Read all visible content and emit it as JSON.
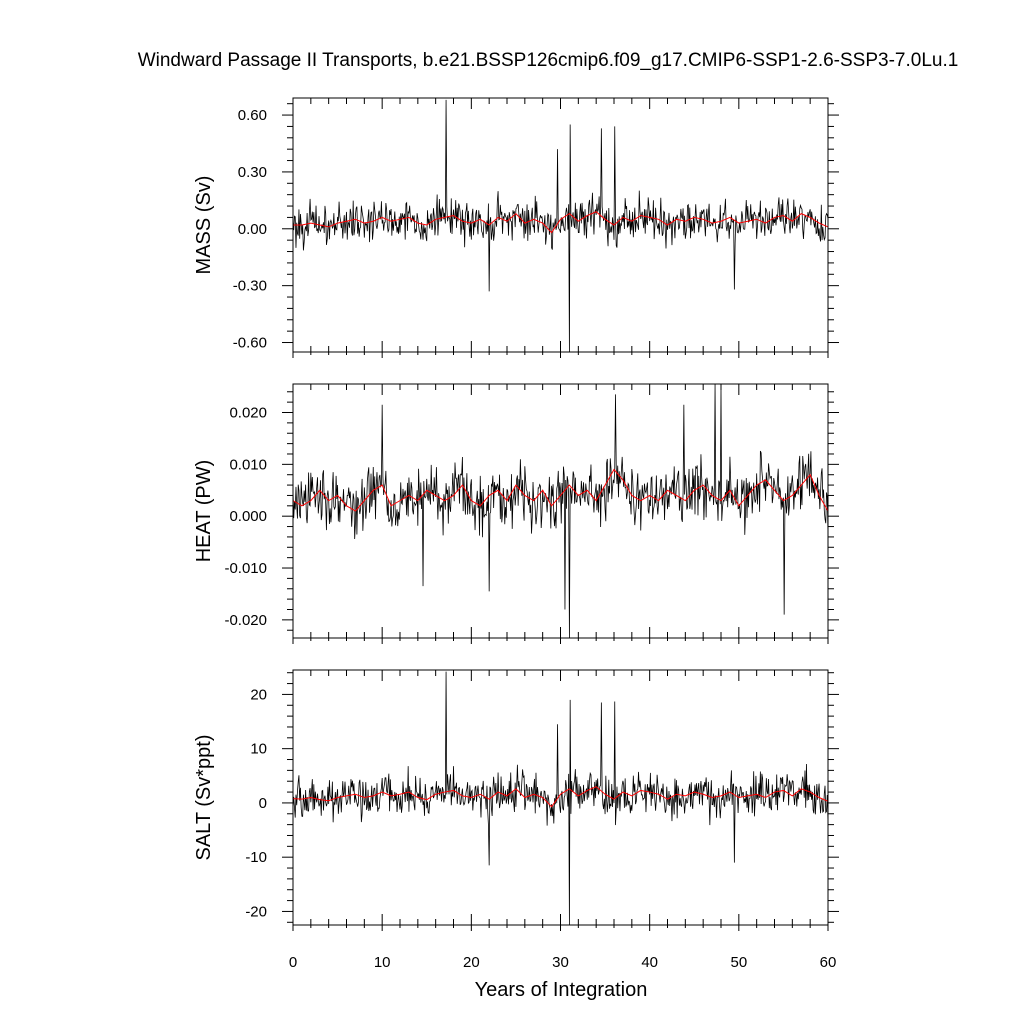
{
  "title": "Windward Passage II Transports, b.e21.BSSP126cmip6.f09_g17.CMIP6-SSP1-2.6-SSP3-7.0Lu.1",
  "xlabel": "Years of Integration",
  "colors": {
    "raw": "#000000",
    "smooth": "#ff0000",
    "axis": "#000000"
  },
  "chart_data": [
    {
      "type": "line",
      "ylabel": "MASS (Sv)",
      "xlim": [
        0,
        60
      ],
      "ylim": [
        -0.65,
        0.69
      ],
      "xticks": [
        0,
        10,
        20,
        30,
        40,
        50,
        60
      ],
      "xtick_labels": [
        "0",
        "10",
        "20",
        "30",
        "40",
        "50",
        "60"
      ],
      "yticks": [
        -0.6,
        -0.3,
        0.0,
        0.3,
        0.6
      ],
      "ytick_labels": [
        "-0.60",
        "-0.30",
        "0.00",
        "0.30",
        "0.60"
      ],
      "yminor_step": 0.06,
      "noise_amp": 0.085,
      "series": [
        {
          "role": "monthly",
          "spikes": [
            [
              17.2,
              0.68
            ],
            [
              31.0,
              -0.65
            ],
            [
              31.1,
              0.55
            ],
            [
              34.6,
              0.53
            ],
            [
              36.1,
              0.54
            ],
            [
              22.0,
              -0.33
            ],
            [
              49.5,
              -0.32
            ],
            [
              29.7,
              0.42
            ]
          ]
        },
        {
          "role": "annual-smoothed",
          "values": [
            0.02,
            0.02,
            0.03,
            0.02,
            0.01,
            0.03,
            0.04,
            0.05,
            0.03,
            0.04,
            0.06,
            0.04,
            0.05,
            0.06,
            0.03,
            0.02,
            0.05,
            0.06,
            0.07,
            0.04,
            0.03,
            0.05,
            0.02,
            0.06,
            0.04,
            0.08,
            0.03,
            0.05,
            0.03,
            -0.02,
            0.05,
            0.08,
            0.04,
            0.07,
            0.09,
            0.05,
            0.02,
            0.06,
            0.04,
            0.07,
            0.06,
            0.05,
            0.02,
            0.05,
            0.04,
            0.06,
            0.05,
            0.03,
            0.04,
            0.06,
            0.03,
            0.04,
            0.05,
            0.03,
            0.06,
            0.07,
            0.04,
            0.08,
            0.06,
            0.03,
            0.01
          ]
        }
      ]
    },
    {
      "type": "line",
      "ylabel": "HEAT (PW)",
      "xlim": [
        0,
        60
      ],
      "ylim": [
        -0.0235,
        0.0255
      ],
      "xticks": [
        0,
        10,
        20,
        30,
        40,
        50,
        60
      ],
      "xtick_labels": [
        "0",
        "10",
        "20",
        "30",
        "40",
        "50",
        "60"
      ],
      "yticks": [
        -0.02,
        -0.01,
        0.0,
        0.01,
        0.02
      ],
      "ytick_labels": [
        "-0.020",
        "-0.010",
        "0.000",
        "0.010",
        "0.020"
      ],
      "yminor_step": 0.002,
      "noise_amp": 0.0045,
      "series": [
        {
          "role": "monthly",
          "spikes": [
            [
              31.0,
              -0.0235
            ],
            [
              47.3,
              0.0255
            ],
            [
              48.0,
              0.025
            ],
            [
              55.1,
              -0.019
            ],
            [
              36.2,
              0.0235
            ],
            [
              30.5,
              -0.018
            ],
            [
              14.6,
              -0.0135
            ],
            [
              22.0,
              -0.0145
            ],
            [
              10.0,
              0.0215
            ],
            [
              43.8,
              0.0215
            ]
          ]
        },
        {
          "role": "annual-smoothed",
          "values": [
            0.003,
            0.002,
            0.003,
            0.005,
            0.003,
            0.004,
            0.002,
            0.001,
            0.003,
            0.005,
            0.006,
            0.002,
            0.003,
            0.004,
            0.003,
            0.005,
            0.004,
            0.003,
            0.004,
            0.006,
            0.003,
            0.002,
            0.004,
            0.005,
            0.003,
            0.006,
            0.004,
            0.003,
            0.005,
            0.002,
            0.004,
            0.006,
            0.004,
            0.005,
            0.003,
            0.006,
            0.009,
            0.007,
            0.004,
            0.003,
            0.004,
            0.003,
            0.005,
            0.004,
            0.003,
            0.005,
            0.006,
            0.004,
            0.003,
            0.005,
            0.002,
            0.004,
            0.006,
            0.007,
            0.005,
            0.003,
            0.004,
            0.006,
            0.008,
            0.004,
            0.001
          ]
        }
      ]
    },
    {
      "type": "line",
      "ylabel": "SALT (Sv*ppt)",
      "xlim": [
        0,
        60
      ],
      "ylim": [
        -22.5,
        24.5
      ],
      "xticks": [
        0,
        10,
        20,
        30,
        40,
        50,
        60
      ],
      "xtick_labels": [
        "0",
        "10",
        "20",
        "30",
        "40",
        "50",
        "60"
      ],
      "yticks": [
        -20,
        -10,
        0,
        10,
        20
      ],
      "ytick_labels": [
        "-20",
        "-10",
        "0",
        "10",
        "20"
      ],
      "yminor_step": 2,
      "noise_amp": 3.0,
      "series": [
        {
          "role": "monthly",
          "spikes": [
            [
              17.2,
              24.2
            ],
            [
              31.0,
              -22.5
            ],
            [
              31.1,
              19.0
            ],
            [
              34.6,
              18.5
            ],
            [
              36.1,
              18.7
            ],
            [
              22.0,
              -11.5
            ],
            [
              49.5,
              -11.0
            ],
            [
              29.7,
              14.5
            ]
          ]
        },
        {
          "role": "annual-smoothed",
          "values": [
            0.8,
            0.7,
            1.0,
            0.6,
            0.4,
            1.0,
            1.3,
            1.6,
            1.0,
            1.3,
            2.0,
            1.3,
            1.6,
            2.0,
            1.0,
            0.6,
            1.6,
            2.0,
            2.3,
            1.3,
            1.0,
            1.6,
            0.7,
            2.0,
            1.3,
            2.6,
            1.0,
            1.6,
            1.0,
            -0.7,
            1.6,
            2.6,
            1.3,
            2.3,
            3.0,
            1.6,
            0.7,
            2.0,
            1.3,
            2.3,
            2.0,
            1.6,
            0.7,
            1.6,
            1.3,
            2.0,
            1.6,
            1.0,
            1.3,
            2.0,
            1.0,
            1.3,
            1.6,
            1.0,
            2.0,
            2.3,
            1.3,
            2.6,
            2.0,
            1.0,
            0.3
          ]
        }
      ]
    }
  ]
}
